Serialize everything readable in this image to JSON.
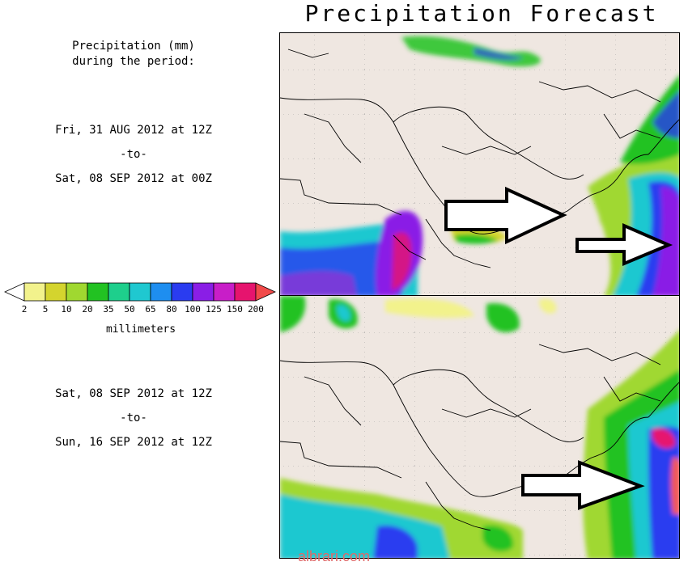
{
  "title": "Precipitation Forecast",
  "header": {
    "line1": "Precipitation (mm)",
    "line2": "during the period:"
  },
  "period1": {
    "start": "Fri, 31 AUG 2012 at 12Z",
    "sep": "-to-",
    "end": "Sat, 08 SEP 2012 at 00Z"
  },
  "period2": {
    "start": "Sat, 08 SEP 2012 at 12Z",
    "sep": "-to-",
    "end": "Sun, 16 SEP 2012 at 12Z"
  },
  "legend": {
    "unit": "millimeters",
    "ticks": [
      "2",
      "5",
      "10",
      "20",
      "35",
      "50",
      "65",
      "80",
      "100",
      "125",
      "150",
      "200"
    ],
    "colors": [
      "#f2f28c",
      "#d4d42e",
      "#a0d830",
      "#22c222",
      "#1ecf8c",
      "#1fc8d0",
      "#1e8ef0",
      "#2a3cf0",
      "#8a1ee6",
      "#c81ec8",
      "#e6146e",
      "#f05858",
      "#f24a4a"
    ]
  },
  "watermark": "albrari.com",
  "colors": {
    "land": "#efe7e1",
    "border": "#000000",
    "grid": "#9a9a9a",
    "arrow_fill": "#ffffff",
    "arrow_stroke": "#000000"
  }
}
